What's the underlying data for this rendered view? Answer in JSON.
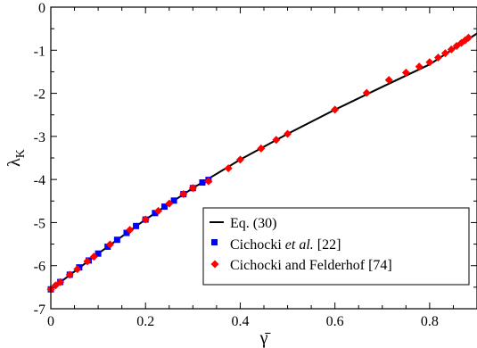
{
  "chart_data": {
    "type": "scatter",
    "xlabel": "γ̄",
    "ylabel": "λ",
    "ylabel_subscript": "K",
    "xlim": [
      0,
      0.9
    ],
    "ylim": [
      -7,
      0
    ],
    "xticks": [
      0,
      0.2,
      0.4,
      0.6,
      0.8
    ],
    "xtick_labels": [
      "0",
      "0.2",
      "0.4",
      "0.6",
      "0.8"
    ],
    "yticks": [
      -7,
      -6,
      -5,
      -4,
      -3,
      -2,
      -1,
      0
    ],
    "ytick_labels": [
      "-7",
      "-6",
      "-5",
      "-4",
      "-3",
      "-2",
      "-1",
      "0"
    ],
    "grid": false,
    "legend_position": "bottom-right",
    "series": [
      {
        "name": "Eq. (30)",
        "kind": "line",
        "color": "#000000",
        "x": [
          0,
          0.1,
          0.2,
          0.3,
          0.4,
          0.5,
          0.6,
          0.7,
          0.8,
          0.9
        ],
        "y": [
          -6.55,
          -5.72,
          -4.93,
          -4.2,
          -3.54,
          -2.94,
          -2.38,
          -1.85,
          -1.33,
          -0.61
        ]
      },
      {
        "name": "Cichocki et al. [22]",
        "name_parts": [
          "Cichocki ",
          "et al.",
          " [22]"
        ],
        "kind": "scatter",
        "marker": "square",
        "color": "#0000ff",
        "x": [
          0.0,
          0.02,
          0.04,
          0.06,
          0.08,
          0.1,
          0.12,
          0.14,
          0.16,
          0.18,
          0.2,
          0.22,
          0.24,
          0.26,
          0.28,
          0.3,
          0.32,
          0.333
        ],
        "y": [
          -6.55,
          -6.38,
          -6.21,
          -6.04,
          -5.88,
          -5.72,
          -5.56,
          -5.4,
          -5.24,
          -5.08,
          -4.93,
          -4.78,
          -4.63,
          -4.49,
          -4.34,
          -4.2,
          -4.07,
          -4.01
        ]
      },
      {
        "name": "Cichocki and Felderhof [74]",
        "kind": "scatter",
        "marker": "diamond",
        "color": "#ff0000",
        "x": [
          0.0,
          0.01,
          0.02,
          0.04,
          0.056,
          0.077,
          0.091,
          0.125,
          0.167,
          0.2,
          0.227,
          0.25,
          0.28,
          0.3,
          0.333,
          0.375,
          0.4,
          0.444,
          0.476,
          0.5,
          0.6,
          0.667,
          0.714,
          0.75,
          0.778,
          0.8,
          0.818,
          0.833,
          0.846,
          0.857,
          0.867,
          0.875,
          0.882
        ],
        "y": [
          -6.55,
          -6.46,
          -6.38,
          -6.21,
          -6.08,
          -5.9,
          -5.79,
          -5.51,
          -5.17,
          -4.93,
          -4.73,
          -4.56,
          -4.34,
          -4.2,
          -4.04,
          -3.74,
          -3.54,
          -3.28,
          -3.08,
          -2.94,
          -2.38,
          -1.99,
          -1.69,
          -1.52,
          -1.38,
          -1.28,
          -1.17,
          -1.07,
          -0.98,
          -0.9,
          -0.83,
          -0.77,
          -0.71
        ]
      }
    ]
  }
}
